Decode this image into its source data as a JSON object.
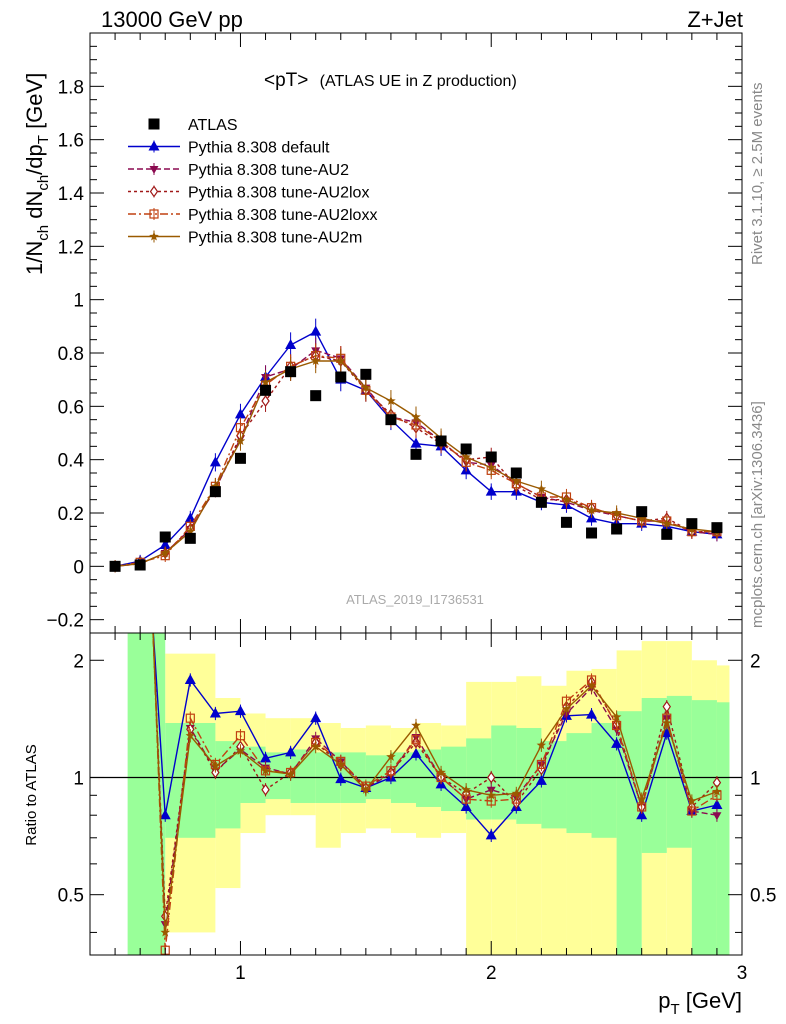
{
  "header": {
    "left": "13000 GeV pp",
    "right": "Z+Jet"
  },
  "side_labels": {
    "rivet": "Rivet 3.1.10, ≥ 2.5M events",
    "mcplots": "mcplots.cern.ch [arXiv:1306.3436]"
  },
  "chart_data": {
    "type": "line",
    "title_main": "<pT>",
    "title_sub": "(ATLAS UE in Z production)",
    "watermark": "ATLAS_2019_I1736531",
    "ylabel_main": "1/N",
    "ylabel_sub1": "ch",
    "ylabel_mid": " dN",
    "ylabel_sub2": "ch",
    "ylabel_mid2": "/dp",
    "ylabel_sub3": "T",
    "ylabel_unit": " [GeV]",
    "ratio_ylabel": "Ratio to ATLAS",
    "xlabel_main": "p",
    "xlabel_sub": "T",
    "xlabel_unit": " [GeV]",
    "xlim": [
      0.4,
      3.0
    ],
    "ylim": [
      -0.25,
      2.0
    ],
    "ratio_ylim": [
      0.35,
      2.35
    ],
    "x_ticks": [
      "1",
      "2",
      "3"
    ],
    "y_ticks": [
      "−0.2",
      "0",
      "0.2",
      "0.4",
      "0.6",
      "0.8",
      "1",
      "1.2",
      "1.4",
      "1.6",
      "1.8"
    ],
    "ratio_ticks": [
      "0.5",
      "1",
      "2"
    ],
    "x": [
      0.5,
      0.6,
      0.7,
      0.8,
      0.9,
      1.0,
      1.1,
      1.2,
      1.3,
      1.4,
      1.5,
      1.6,
      1.7,
      1.8,
      1.9,
      2.0,
      2.1,
      2.2,
      2.3,
      2.4,
      2.5,
      2.6,
      2.7,
      2.8,
      2.9
    ],
    "data": {
      "name": "ATLAS",
      "values": [
        0.0,
        0.005,
        0.11,
        0.105,
        0.28,
        0.405,
        0.66,
        0.73,
        0.64,
        0.71,
        0.72,
        0.55,
        0.42,
        0.47,
        0.44,
        0.41,
        0.35,
        0.24,
        0.165,
        0.125,
        0.14,
        0.205,
        0.12,
        0.16,
        0.145
      ]
    },
    "series": [
      {
        "name": "Pythia 8.308 default",
        "color": "#0000cc",
        "marker": "triangle-up",
        "dash": "",
        "values": [
          0.0,
          0.02,
          0.08,
          0.18,
          0.39,
          0.57,
          0.71,
          0.83,
          0.88,
          0.7,
          0.66,
          0.55,
          0.46,
          0.45,
          0.36,
          0.28,
          0.28,
          0.24,
          0.23,
          0.18,
          0.16,
          0.16,
          0.15,
          0.13,
          0.12
        ]
      },
      {
        "name": "Pythia 8.308 tune-AU2",
        "color": "#8b0a50",
        "marker": "triangle-down",
        "dash": "6,3",
        "values": [
          0.0,
          0.01,
          0.05,
          0.14,
          0.29,
          0.48,
          0.71,
          0.74,
          0.81,
          0.78,
          0.67,
          0.56,
          0.54,
          0.47,
          0.39,
          0.38,
          0.31,
          0.26,
          0.24,
          0.21,
          0.19,
          0.17,
          0.17,
          0.13,
          0.12
        ]
      },
      {
        "name": "Pythia 8.308 tune-AU2lox",
        "color": "#a01818",
        "marker": "diamond-open",
        "dash": "3,3",
        "values": [
          0.0,
          0.01,
          0.05,
          0.14,
          0.29,
          0.49,
          0.62,
          0.75,
          0.79,
          0.77,
          0.66,
          0.57,
          0.52,
          0.46,
          0.4,
          0.41,
          0.3,
          0.25,
          0.25,
          0.22,
          0.19,
          0.17,
          0.18,
          0.13,
          0.13
        ]
      },
      {
        "name": "Pythia 8.308 tune-AU2loxx",
        "color": "#c04010",
        "marker": "square-open",
        "dash": "8,3,2,3",
        "values": [
          0.0,
          0.015,
          0.04,
          0.15,
          0.3,
          0.52,
          0.68,
          0.75,
          0.79,
          0.78,
          0.66,
          0.56,
          0.53,
          0.47,
          0.39,
          0.36,
          0.31,
          0.26,
          0.26,
          0.22,
          0.19,
          0.17,
          0.17,
          0.13,
          0.13
        ]
      },
      {
        "name": "Pythia 8.308 tune-AU2m",
        "color": "#9a5a00",
        "marker": "star",
        "dash": "",
        "values": [
          0.0,
          0.01,
          0.05,
          0.13,
          0.3,
          0.47,
          0.69,
          0.74,
          0.77,
          0.77,
          0.67,
          0.62,
          0.56,
          0.48,
          0.41,
          0.37,
          0.32,
          0.29,
          0.25,
          0.21,
          0.2,
          0.18,
          0.16,
          0.14,
          0.13
        ]
      }
    ],
    "ratio_series": [
      [
        null,
        null,
        0.8,
        1.78,
        1.46,
        1.48,
        1.12,
        1.16,
        1.42,
        0.99,
        0.94,
        1.0,
        1.15,
        0.96,
        0.84,
        0.71,
        0.84,
        0.98,
        1.44,
        1.45,
        1.22,
        0.8,
        1.3,
        0.82,
        0.85
      ],
      [
        null,
        null,
        0.42,
        1.34,
        1.04,
        1.18,
        1.06,
        1.02,
        1.26,
        1.1,
        0.94,
        1.02,
        1.27,
        1.0,
        0.88,
        0.93,
        0.89,
        1.08,
        1.46,
        1.7,
        1.33,
        0.84,
        1.42,
        0.82,
        0.8
      ],
      [
        null,
        null,
        0.44,
        1.33,
        1.03,
        1.2,
        0.93,
        1.03,
        1.23,
        1.08,
        0.94,
        1.03,
        1.23,
        1.0,
        0.91,
        1.0,
        0.86,
        1.05,
        1.52,
        1.76,
        1.37,
        0.84,
        1.52,
        0.84,
        0.97
      ],
      [
        null,
        null,
        0.36,
        1.42,
        1.08,
        1.28,
        1.04,
        1.03,
        1.23,
        1.1,
        0.95,
        1.04,
        1.25,
        1.0,
        0.88,
        0.87,
        0.88,
        1.08,
        1.57,
        1.78,
        1.36,
        0.84,
        1.42,
        0.82,
        0.9
      ],
      [
        null,
        null,
        0.4,
        1.28,
        1.07,
        1.17,
        1.04,
        1.02,
        1.2,
        1.08,
        0.93,
        1.13,
        1.36,
        1.03,
        0.93,
        0.9,
        0.91,
        1.21,
        1.5,
        1.72,
        1.43,
        0.88,
        1.38,
        0.87,
        0.92
      ]
    ],
    "band_yellow": [
      [
        0.7,
        0.9,
        2.08,
        0.4
      ],
      [
        0.9,
        1.0,
        1.6,
        0.52
      ],
      [
        1.0,
        1.1,
        1.46,
        0.72
      ],
      [
        1.1,
        1.2,
        1.42,
        0.8
      ],
      [
        1.2,
        1.3,
        1.42,
        0.8
      ],
      [
        1.3,
        1.4,
        1.38,
        0.66
      ],
      [
        1.4,
        1.5,
        1.34,
        0.72
      ],
      [
        1.5,
        1.6,
        1.36,
        0.74
      ],
      [
        1.6,
        1.7,
        1.34,
        0.72
      ],
      [
        1.7,
        1.8,
        1.38,
        0.7
      ],
      [
        1.8,
        1.9,
        1.36,
        0.72
      ],
      [
        1.9,
        2.0,
        1.76,
        0.35
      ],
      [
        2.0,
        2.1,
        1.76,
        0.35
      ],
      [
        2.1,
        2.2,
        1.82,
        0.35
      ],
      [
        2.2,
        2.3,
        1.72,
        0.35
      ],
      [
        2.3,
        2.4,
        1.88,
        0.35
      ],
      [
        2.4,
        2.5,
        1.9,
        0.35
      ],
      [
        2.5,
        2.6,
        2.12,
        0.35
      ],
      [
        2.6,
        2.7,
        2.24,
        0.35
      ],
      [
        2.7,
        2.8,
        2.24,
        0.35
      ],
      [
        2.8,
        2.9,
        2.0,
        0.35
      ],
      [
        2.9,
        2.95,
        1.94,
        0.35
      ]
    ],
    "band_green": [
      [
        0.55,
        0.7,
        2.35,
        0.35
      ],
      [
        0.7,
        0.9,
        1.38,
        0.7
      ],
      [
        0.9,
        1.0,
        1.24,
        0.74
      ],
      [
        1.0,
        1.1,
        1.2,
        0.86
      ],
      [
        1.1,
        1.2,
        1.16,
        0.88
      ],
      [
        1.2,
        1.3,
        1.18,
        0.86
      ],
      [
        1.3,
        1.4,
        1.16,
        0.86
      ],
      [
        1.4,
        1.5,
        1.16,
        0.86
      ],
      [
        1.5,
        1.6,
        1.14,
        0.88
      ],
      [
        1.6,
        1.7,
        1.16,
        0.86
      ],
      [
        1.7,
        1.8,
        1.18,
        0.84
      ],
      [
        1.8,
        1.9,
        1.2,
        0.82
      ],
      [
        1.9,
        2.0,
        1.26,
        0.78
      ],
      [
        2.0,
        2.1,
        1.36,
        0.78
      ],
      [
        2.1,
        2.2,
        1.34,
        0.76
      ],
      [
        2.2,
        2.3,
        1.24,
        0.74
      ],
      [
        2.3,
        2.4,
        1.3,
        0.72
      ],
      [
        2.4,
        2.5,
        1.38,
        0.7
      ],
      [
        2.5,
        2.6,
        1.48,
        0.35
      ],
      [
        2.6,
        2.7,
        1.6,
        0.64
      ],
      [
        2.7,
        2.8,
        1.62,
        0.66
      ],
      [
        2.8,
        2.9,
        1.58,
        0.35
      ],
      [
        2.9,
        2.95,
        1.56,
        0.35
      ]
    ]
  }
}
